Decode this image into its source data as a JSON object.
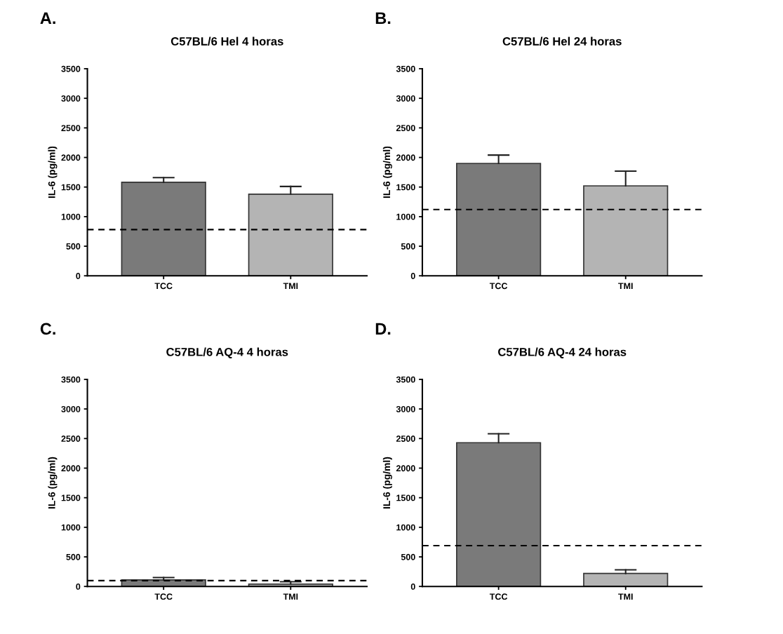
{
  "chart_data": [
    {
      "type": "bar",
      "title": "C57BL/6 Hel 4 horas",
      "ylabel": "IL-6 (pg/ml)",
      "annotations": [
        "A."
      ],
      "categories": [
        "TCC",
        "TMI"
      ],
      "values": [
        1580,
        1380
      ],
      "colors": [
        "#7a7a7a",
        "#b4b4b4"
      ],
      "errors": [
        [
          1580,
          1660
        ],
        [
          1380,
          1510
        ]
      ],
      "ylim": [
        0,
        3500
      ],
      "yticks": [
        0,
        500,
        1000,
        1500,
        2000,
        2500,
        3000,
        3500
      ],
      "ref_lines": [
        {
          "axis": "y",
          "value": 780,
          "label": null,
          "color": "#000000",
          "line_style": "dashed"
        }
      ],
      "grid": false
    },
    {
      "type": "bar",
      "title": "C57BL/6 Hel 24 horas",
      "ylabel": "IL-6 (pg/ml)",
      "annotations": [
        "B."
      ],
      "categories": [
        "TCC",
        "TMI"
      ],
      "values": [
        1900,
        1520
      ],
      "colors": [
        "#7a7a7a",
        "#b4b4b4"
      ],
      "errors": [
        [
          1900,
          2040
        ],
        [
          1520,
          1770
        ]
      ],
      "ylim": [
        0,
        3500
      ],
      "yticks": [
        0,
        500,
        1000,
        1500,
        2000,
        2500,
        3000,
        3500
      ],
      "ref_lines": [
        {
          "axis": "y",
          "value": 1120,
          "label": null,
          "color": "#000000",
          "line_style": "dashed"
        }
      ],
      "grid": false
    },
    {
      "type": "bar",
      "title": "C57BL/6 AQ-4 4 horas",
      "ylabel": "IL-6 (pg/ml)",
      "annotations": [
        "C."
      ],
      "categories": [
        "TCC",
        "TMI"
      ],
      "values": [
        110,
        40
      ],
      "colors": [
        "#7a7a7a",
        "#b4b4b4"
      ],
      "errors": [
        [
          110,
          150
        ],
        [
          40,
          80
        ]
      ],
      "ylim": [
        0,
        3500
      ],
      "yticks": [
        0,
        500,
        1000,
        1500,
        2000,
        2500,
        3000,
        3500
      ],
      "ref_lines": [
        {
          "axis": "y",
          "value": 100,
          "label": null,
          "color": "#000000",
          "line_style": "dashed"
        }
      ],
      "grid": false
    },
    {
      "type": "bar",
      "title": "C57BL/6 AQ-4 24 horas",
      "ylabel": "IL-6 (pg/ml)",
      "annotations": [
        "D."
      ],
      "categories": [
        "TCC",
        "TMI"
      ],
      "values": [
        2430,
        220
      ],
      "colors": [
        "#7a7a7a",
        "#b4b4b4"
      ],
      "errors": [
        [
          2430,
          2580
        ],
        [
          220,
          280
        ]
      ],
      "ylim": [
        0,
        3500
      ],
      "yticks": [
        0,
        500,
        1000,
        1500,
        2000,
        2500,
        3000,
        3500
      ],
      "ref_lines": [
        {
          "axis": "y",
          "value": 690,
          "label": null,
          "color": "#000000",
          "line_style": "dashed"
        }
      ],
      "grid": false
    }
  ]
}
